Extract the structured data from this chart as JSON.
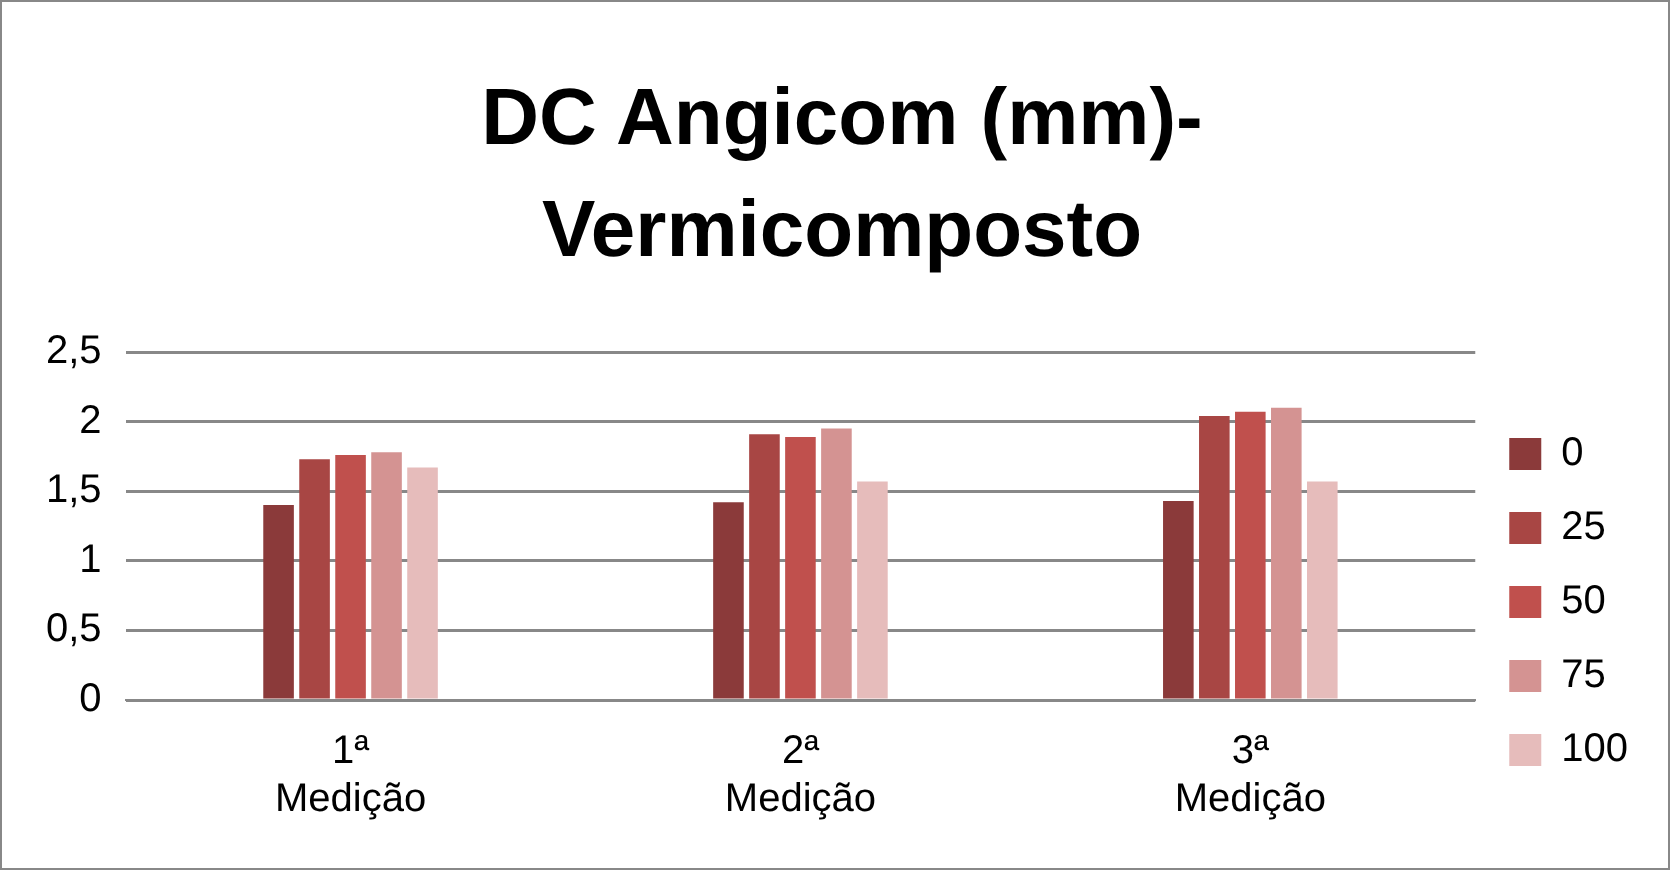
{
  "chart_data": {
    "type": "bar",
    "title": "DC Angicom (mm)- Vermicomposto",
    "categories": [
      "1ª Medição",
      "2ª Medição",
      "3ª Medição"
    ],
    "series": [
      {
        "name": "0",
        "color": "#8b3a3a",
        "values": [
          1.4,
          1.42,
          1.43
        ]
      },
      {
        "name": "25",
        "color": "#a84644",
        "values": [
          1.73,
          1.91,
          2.04
        ]
      },
      {
        "name": "50",
        "color": "#c0504d",
        "values": [
          1.76,
          1.89,
          2.07
        ]
      },
      {
        "name": "75",
        "color": "#d49392",
        "values": [
          1.78,
          1.95,
          2.1
        ]
      },
      {
        "name": "100",
        "color": "#e6bcbb",
        "values": [
          1.67,
          1.57,
          1.57
        ]
      }
    ],
    "ylim": [
      0,
      2.5
    ],
    "yticks": [
      0,
      {
        "value": 0.5,
        "label": "0,5"
      },
      1,
      {
        "value": 1.5,
        "label": "1,5"
      },
      2,
      {
        "value": 2.5,
        "label": "2,5"
      }
    ],
    "grid": "y",
    "legend": "right"
  }
}
